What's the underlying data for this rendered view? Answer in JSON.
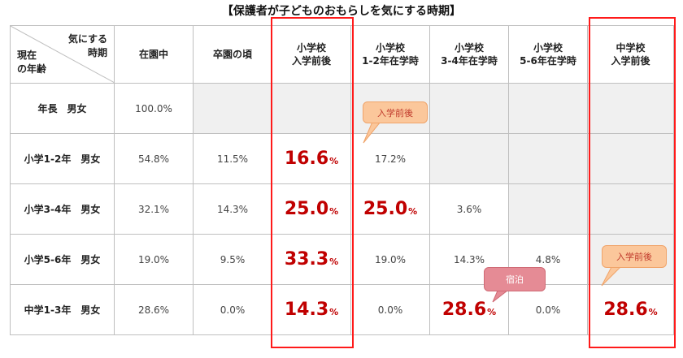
{
  "title": "【保護者が子どものおもらしを気にする時期】",
  "corner": {
    "top_line1": "気にする",
    "top_line2": "時期",
    "bottom_line1": "現在",
    "bottom_line2": "の年齢"
  },
  "columns": [
    {
      "line1": "在園中",
      "line2": ""
    },
    {
      "line1": "卒園の頃",
      "line2": ""
    },
    {
      "line1": "小学校",
      "line2": "入学前後"
    },
    {
      "line1": "小学校",
      "line2": "1-2年在学時"
    },
    {
      "line1": "小学校",
      "line2": "3-4年在学時"
    },
    {
      "line1": "小学校",
      "line2": "5-6年在学時"
    },
    {
      "line1": "中学校",
      "line2": "入学前後"
    }
  ],
  "rows": [
    {
      "label": "年長　男女",
      "cells": [
        {
          "v": "100.0%"
        },
        {
          "empty": true
        },
        {
          "empty": true
        },
        {
          "empty": true
        },
        {
          "empty": true
        },
        {
          "empty": true
        },
        {
          "empty": true
        }
      ]
    },
    {
      "label": "小学1-2年　男女",
      "cells": [
        {
          "v": "54.8%"
        },
        {
          "v": "11.5%"
        },
        {
          "num": "16.6",
          "unit": "%"
        },
        {
          "v": "17.2%"
        },
        {
          "empty": true
        },
        {
          "empty": true
        },
        {
          "empty": true
        }
      ]
    },
    {
      "label": "小学3-4年　男女",
      "cells": [
        {
          "v": "32.1%"
        },
        {
          "v": "14.3%"
        },
        {
          "num": "25.0",
          "unit": "%"
        },
        {
          "num": "25.0",
          "unit": "%"
        },
        {
          "v": "3.6%"
        },
        {
          "empty": true
        },
        {
          "empty": true
        }
      ]
    },
    {
      "label": "小学5-6年　男女",
      "cells": [
        {
          "v": "19.0%"
        },
        {
          "v": "9.5%"
        },
        {
          "num": "33.3",
          "unit": "%"
        },
        {
          "v": "19.0%"
        },
        {
          "v": "14.3%"
        },
        {
          "v": "4.8%"
        },
        {
          "empty": true
        }
      ]
    },
    {
      "label": "中学1-3年　男女",
      "cells": [
        {
          "v": "28.6%"
        },
        {
          "v": "0.0%"
        },
        {
          "num": "14.3",
          "unit": "%"
        },
        {
          "v": "0.0%"
        },
        {
          "num": "28.6",
          "unit": "%"
        },
        {
          "v": "0.0%"
        },
        {
          "num": "28.6",
          "unit": "%"
        }
      ]
    }
  ],
  "callouts": {
    "entry_1": "入学前後",
    "overnight": "宿泊",
    "entry_2": "入学前後"
  },
  "colors": {
    "highlight": "#c00000",
    "box_border": "#ff1a1a",
    "callout_orange": "#fbc79b",
    "callout_pink": "#e58b95"
  }
}
